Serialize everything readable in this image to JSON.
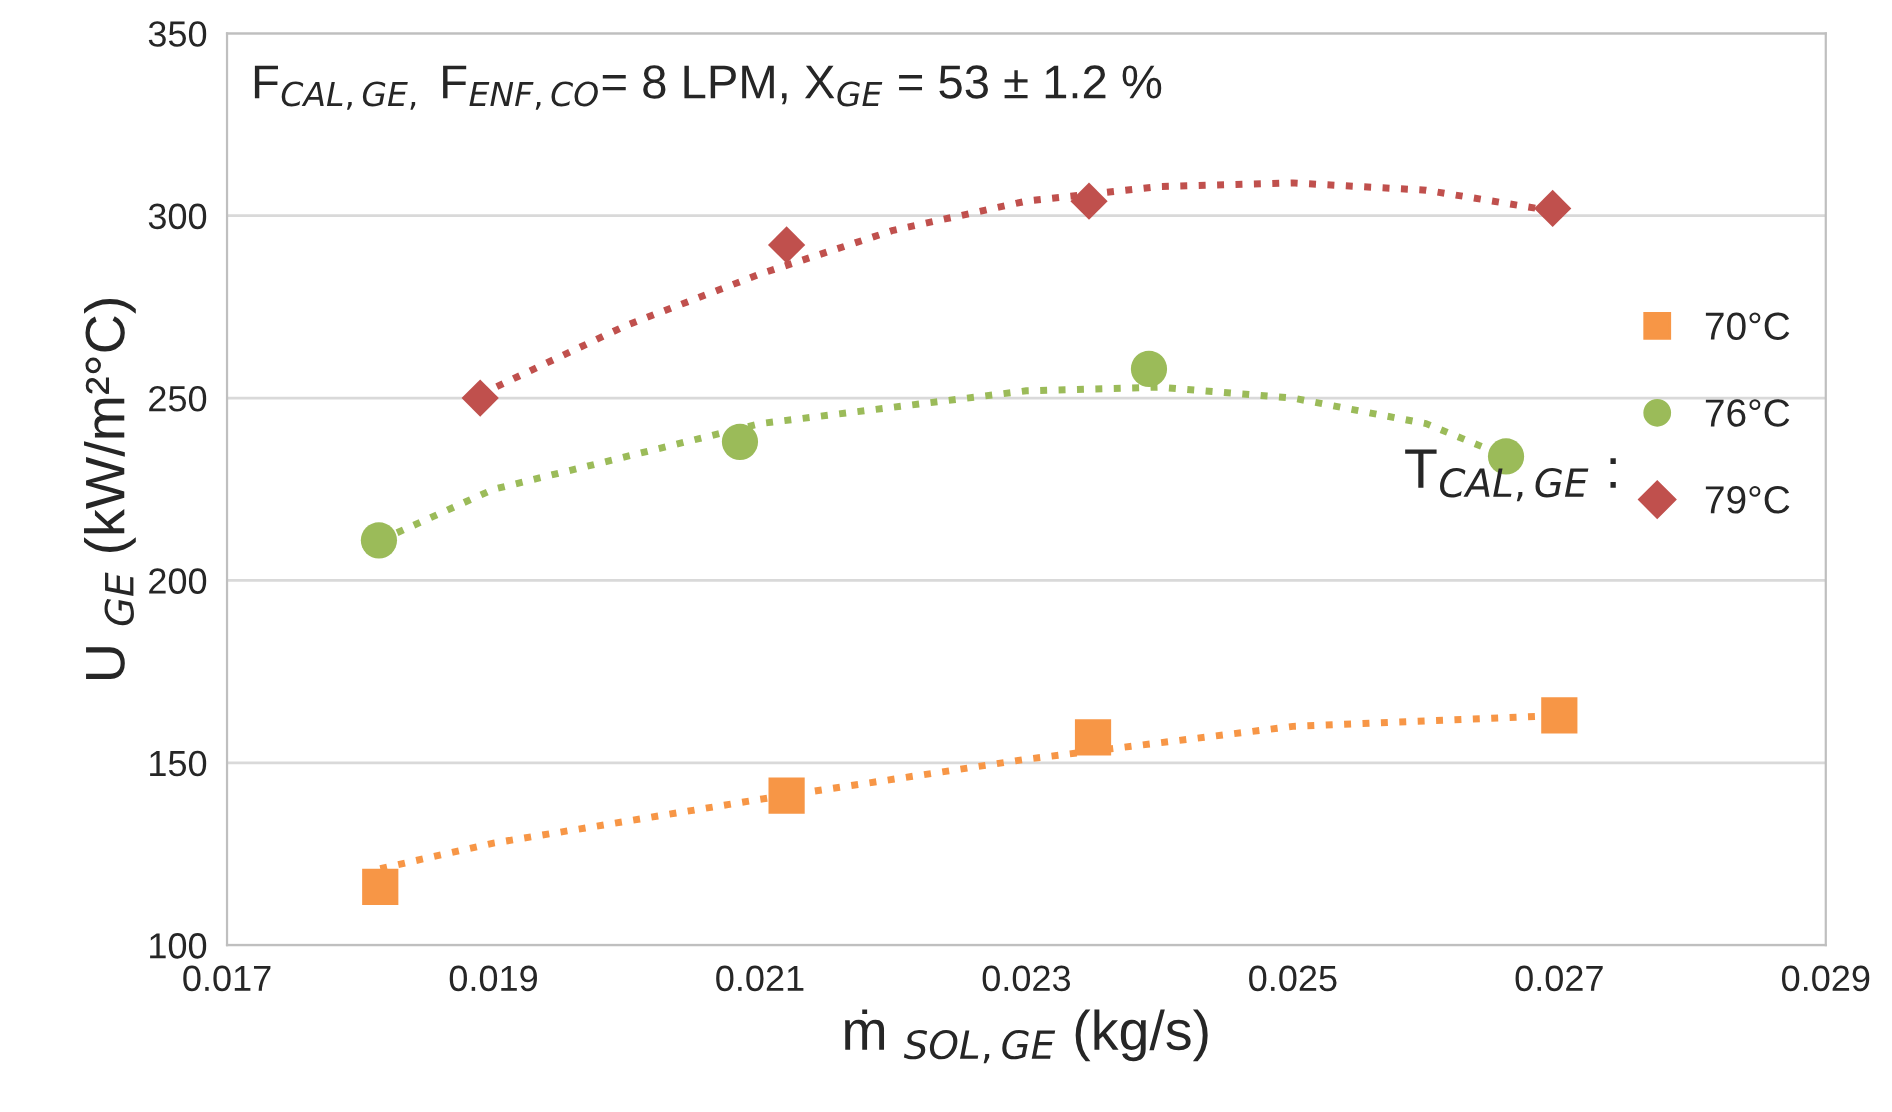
{
  "chart_data": {
    "type": "scatter",
    "xlabel": "ṁ $_{SOL,GE}$ (kg/s)",
    "ylabel": "U $_{GE}$ (kW/m²°C)",
    "legend_title": "T$_{CAL,GE}$ :",
    "annotations": [
      "F$_{CAL,GE,}$ F$_{ENF,CO}$= 8 LPM, X$_{GE}$ = 53 ± 1.2 %"
    ],
    "series": [
      {
        "name": "70°C",
        "color": "#f79646",
        "marker": "square",
        "x": [
          0.01815,
          0.0212,
          0.0235,
          0.027
        ],
        "values": [
          116,
          141,
          157,
          163
        ]
      },
      {
        "name": "76°C",
        "color": "#9bbb59",
        "marker": "circle",
        "x": [
          0.01814,
          0.02085,
          0.02392,
          0.0266
        ],
        "values": [
          211,
          238,
          258,
          234
        ]
      },
      {
        "name": "79°C",
        "color": "#c0504d",
        "marker": "diamond",
        "x": [
          0.0189,
          0.0212,
          0.02347,
          0.02695
        ],
        "values": [
          250,
          292,
          304,
          302
        ]
      },
      {
        "type": "line",
        "color": "#f79646",
        "line_style": "dotted",
        "marker": "none",
        "x": [
          0.01815,
          0.019,
          0.021,
          0.023,
          0.025,
          0.027
        ],
        "values": [
          121,
          128,
          140,
          151,
          160,
          163
        ]
      },
      {
        "type": "line",
        "color": "#9bbb59",
        "line_style": "dotted",
        "marker": "none",
        "x": [
          0.01815,
          0.019,
          0.021,
          0.023,
          0.024,
          0.025,
          0.026,
          0.0266
        ],
        "values": [
          211,
          225,
          243,
          252,
          253,
          250,
          243,
          234
        ]
      },
      {
        "type": "line",
        "color": "#c0504d",
        "line_style": "dotted",
        "marker": "none",
        "x": [
          0.0189,
          0.02,
          0.021,
          0.022,
          0.023,
          0.024,
          0.025,
          0.026,
          0.027
        ],
        "values": [
          251,
          270,
          284,
          296,
          304,
          308,
          309,
          307,
          301
        ]
      }
    ],
    "xlim": [
      0.017,
      0.029
    ],
    "xticks": [
      0.017,
      0.019,
      0.021,
      0.023,
      0.025,
      0.027,
      0.029
    ],
    "ylim": [
      100,
      350
    ],
    "yticks": [
      100,
      150,
      200,
      250,
      300,
      350
    ],
    "grid": "y",
    "legend": "right"
  }
}
